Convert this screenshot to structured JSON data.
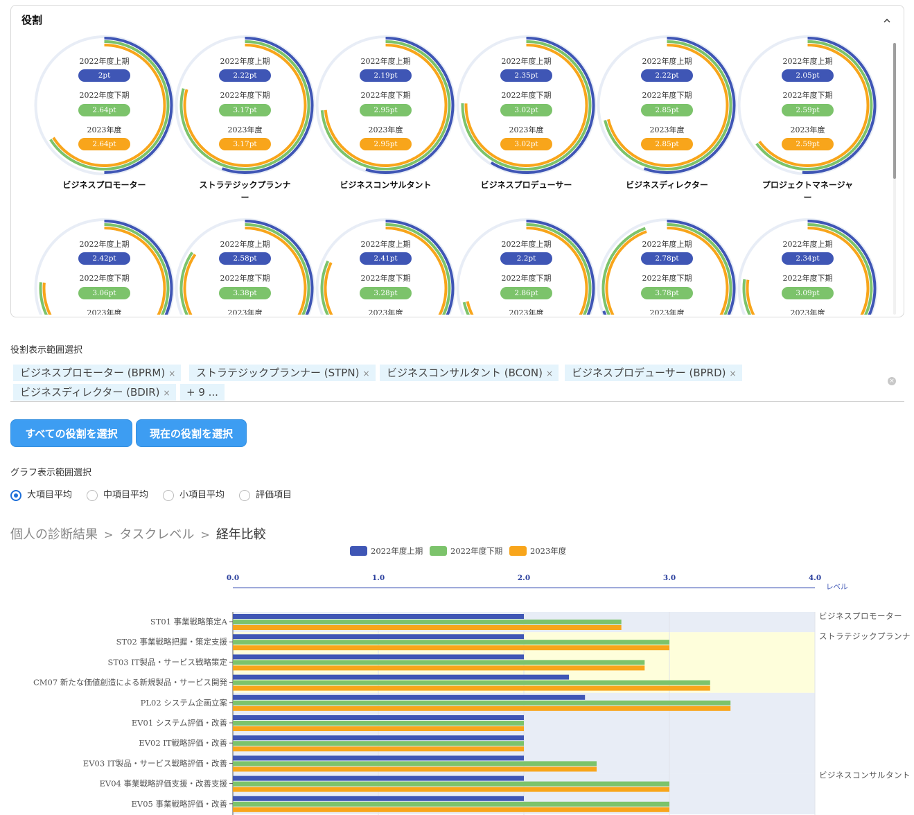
{
  "panel": {
    "title": "役割"
  },
  "period_labels": [
    "2022年度上期",
    "2022年度下期",
    "2023年度"
  ],
  "colors": {
    "first_half": "#3f56b5",
    "second_half": "#7cc36b",
    "fy2023": "#f8a51b",
    "track": "#e8edf6",
    "accent": "#3d9df2"
  },
  "roles": [
    {
      "name": "ビジネスプロモーター",
      "values": [
        "2pt",
        "2.64pt",
        "2.64pt"
      ],
      "fractions": [
        0.5,
        0.66,
        0.66
      ]
    },
    {
      "name": "ストラテジックプランナー",
      "values": [
        "2.22pt",
        "3.17pt",
        "3.17pt"
      ],
      "fractions": [
        0.555,
        0.7925,
        0.7925
      ]
    },
    {
      "name": "ビジネスコンサルタント",
      "values": [
        "2.19pt",
        "2.95pt",
        "2.95pt"
      ],
      "fractions": [
        0.5475,
        0.7375,
        0.7375
      ]
    },
    {
      "name": "ビジネスプロデューサー",
      "values": [
        "2.35pt",
        "3.02pt",
        "3.02pt"
      ],
      "fractions": [
        0.5875,
        0.755,
        0.755
      ]
    },
    {
      "name": "ビジネスディレクター",
      "values": [
        "2.22pt",
        "2.85pt",
        "2.85pt"
      ],
      "fractions": [
        0.555,
        0.7125,
        0.7125
      ]
    },
    {
      "name": "プロジェクトマネージャー",
      "values": [
        "2.05pt",
        "2.59pt",
        "2.59pt"
      ],
      "fractions": [
        0.5125,
        0.6475,
        0.6475
      ]
    },
    {
      "name": "",
      "values": [
        "2.42pt",
        "3.06pt",
        ""
      ],
      "fractions": [
        0.605,
        0.765,
        0.765
      ]
    },
    {
      "name": "",
      "values": [
        "2.58pt",
        "3.38pt",
        ""
      ],
      "fractions": [
        0.645,
        0.845,
        0.845
      ]
    },
    {
      "name": "",
      "values": [
        "2.41pt",
        "3.28pt",
        ""
      ],
      "fractions": [
        0.6025,
        0.82,
        0.82
      ]
    },
    {
      "name": "",
      "values": [
        "2.2pt",
        "2.86pt",
        ""
      ],
      "fractions": [
        0.55,
        0.715,
        0.715
      ]
    },
    {
      "name": "",
      "values": [
        "2.78pt",
        "3.78pt",
        ""
      ],
      "fractions": [
        0.695,
        0.945,
        0.945
      ]
    },
    {
      "name": "",
      "values": [
        "2.34pt",
        "3.09pt",
        ""
      ],
      "fractions": [
        0.585,
        0.7725,
        0.7725
      ]
    }
  ],
  "role_filter": {
    "label": "役割表示範囲選択",
    "chips": [
      "ビジネスプロモーター (BPRM)",
      "ストラテジックプランナー (STPN)",
      "ビジネスコンサルタント (BCON)",
      "ビジネスプロデューサー (BPRD)",
      "ビジネスディレクター (BDIR)"
    ],
    "more": "+ 9 ...",
    "remove_glyph": "×"
  },
  "buttons": {
    "select_all": "すべての役割を選択",
    "select_current": "現在の役割を選択"
  },
  "graph_range": {
    "label": "グラフ表示範囲選択",
    "options": [
      "大項目平均",
      "中項目平均",
      "小項目平均",
      "評価項目"
    ],
    "selected": "大項目平均"
  },
  "breadcrumb": {
    "items": [
      "個人の診断結果",
      "タスクレベル"
    ],
    "current": "経年比較",
    "separator": ">"
  },
  "chart_data": {
    "type": "bar",
    "orientation": "horizontal",
    "series": [
      {
        "name": "2022年度上期",
        "color": "#3f56b5",
        "values": [
          2.0,
          2.0,
          2.0,
          2.31,
          2.42,
          2.0,
          2.0,
          2.0,
          2.0,
          2.0
        ]
      },
      {
        "name": "2022年度下期",
        "color": "#7cc36b",
        "values": [
          2.67,
          3.0,
          2.83,
          3.28,
          3.42,
          2.0,
          2.0,
          2.5,
          3.0,
          3.0
        ]
      },
      {
        "name": "2023年度",
        "color": "#f8a51b",
        "values": [
          2.67,
          3.0,
          2.83,
          3.28,
          3.42,
          2.0,
          2.0,
          2.5,
          3.0,
          3.0
        ]
      }
    ],
    "categories": [
      "ST01 事業戦略策定A",
      "ST02 事業戦略把握・策定支援",
      "ST03 IT製品・サービス戦略策定",
      "CM07 新たな価値創造による新規製品・サービス開発",
      "PL02 システム企画立案",
      "EV01 システム評価・改善",
      "EV02 IT戦略評価・改善",
      "EV03 IT製品・サービス戦略評価・改善",
      "EV04 事業戦略評価支援・改善支援",
      "EV05 事業戦略評価・改善"
    ],
    "xlim": [
      0,
      4
    ],
    "x_ticks": [
      "0.0",
      "1.0",
      "2.0",
      "3.0",
      "4.0"
    ],
    "x_axis_label": "レベル",
    "role_groups": [
      {
        "label": "ビジネスプロモーター",
        "start": 0,
        "end": 1,
        "band": "#e8edf6"
      },
      {
        "label": "ストラテジックプランナ",
        "start": 1,
        "end": 4,
        "band": "#fefedb"
      },
      {
        "label": "",
        "start": 4,
        "end": 8,
        "band": "#e8edf6"
      },
      {
        "label": "ビジネスコンサルタント",
        "start": 8,
        "end": 10,
        "band": "#e8edf6"
      }
    ],
    "legend_position": "top-center"
  }
}
